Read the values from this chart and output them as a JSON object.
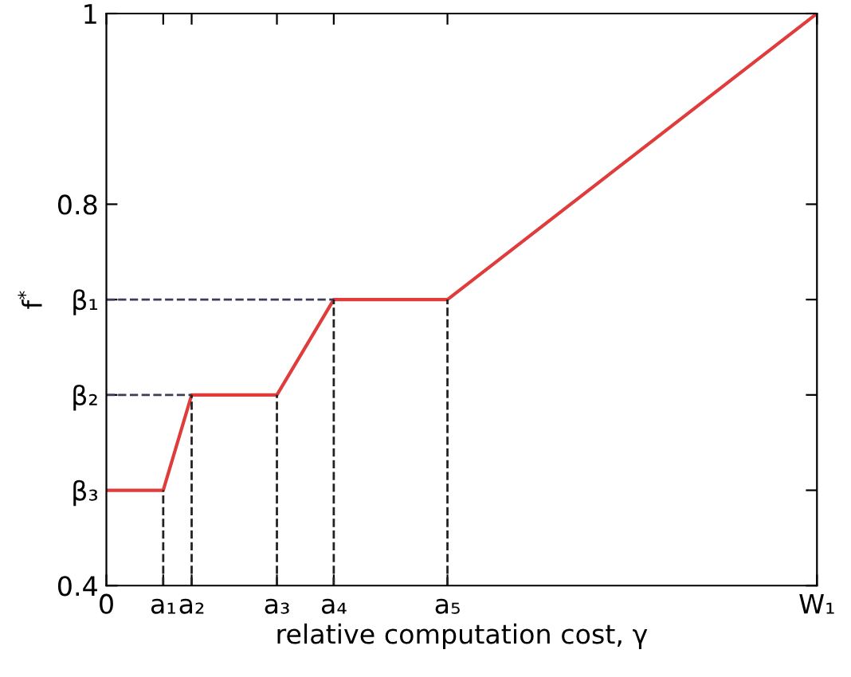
{
  "chart_data": {
    "type": "line",
    "xlabel": "relative computation cost, γ",
    "ylabel": "f$^{*}$",
    "categories": [
      "0",
      null,
      "a₁",
      "a₂",
      null,
      null,
      "a₃",
      null,
      "a₄",
      null,
      null,
      null,
      "a₅",
      null,
      null,
      null,
      null,
      null,
      null,
      null,
      null,
      null,
      null,
      null,
      null,
      "W₁"
    ],
    "ylim": [
      0.4,
      1
    ],
    "yticks": [
      0.4,
      {
        "value": 0.5,
        "label": "β₃"
      },
      {
        "value": 0.6,
        "label": "β₂"
      },
      {
        "value": 0.7,
        "label": "β₁"
      },
      0.8,
      1
    ],
    "grid": false,
    "marker": "none",
    "series": [
      {
        "color": "#e03c3c",
        "line_style": "solid",
        "x": [
          "0",
          "a₁",
          "a₂",
          "a₃",
          "a₄",
          "a₅",
          "W₁"
        ],
        "values": [
          0.5,
          0.5,
          0.6,
          0.6,
          0.7,
          0.7,
          1
        ]
      },
      {
        "color": "#3c3c5a",
        "line_style": "dashed",
        "x": [
          "0",
          "a₂"
        ],
        "values": [
          0.6,
          0.6
        ]
      },
      {
        "color": "#3c3c5a",
        "line_style": "dashed",
        "x": [
          "0",
          "a₄"
        ],
        "values": [
          0.7,
          0.7
        ]
      },
      {
        "color": "#222222",
        "line_style": "dashed",
        "x": [
          "a₁",
          "a₁"
        ],
        "values": [
          0.4,
          0.5
        ]
      },
      {
        "color": "#222222",
        "line_style": "dashed",
        "x": [
          "a₂",
          "a₂"
        ],
        "values": [
          0.4,
          0.6
        ]
      },
      {
        "color": "#222222",
        "line_style": "dashed",
        "x": [
          "a₃",
          "a₃"
        ],
        "values": [
          0.4,
          0.6
        ]
      },
      {
        "color": "#222222",
        "line_style": "dashed",
        "x": [
          "a₄",
          "a₄"
        ],
        "values": [
          0.4,
          0.7
        ]
      },
      {
        "color": "#222222",
        "line_style": "dashed",
        "x": [
          "a₅",
          "a₅"
        ],
        "values": [
          0.4,
          0.7
        ]
      }
    ]
  }
}
